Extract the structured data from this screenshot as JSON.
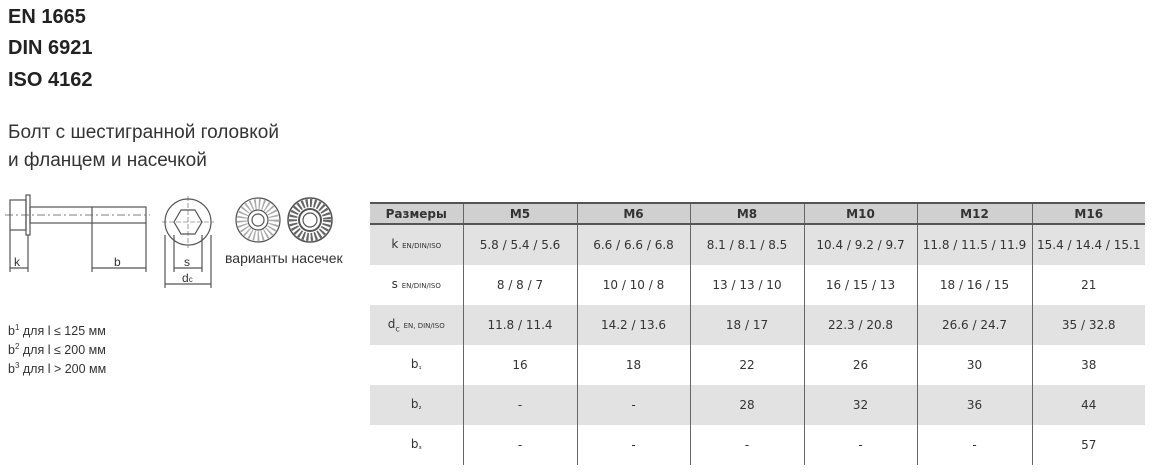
{
  "standards": [
    "EN 1665",
    "DIN 6921",
    "ISO 4162"
  ],
  "title_lines": [
    "Болт с шестигранной головкой",
    "и фланцем и насечкой"
  ],
  "drawing": {
    "k": "k",
    "b": "b",
    "s": "s",
    "dc": "d",
    "dc_sub": "c",
    "variants_label": "варианты насечек"
  },
  "notes": [
    {
      "b": "b",
      "sup": "1",
      "text": " для l ≤ 125 мм"
    },
    {
      "b": "b",
      "sup": "2",
      "text": " для l ≤ 200 мм"
    },
    {
      "b": "b",
      "sup": "3",
      "text": " для l > 200 мм"
    }
  ],
  "table": {
    "headers": [
      "Размеры",
      "M5",
      "M6",
      "M8",
      "M10",
      "M12",
      "M16"
    ],
    "rows": [
      {
        "label": "k",
        "label_sub": "",
        "label_small": "EN/DIN/ISO",
        "values": [
          "5.8 / 5.4 / 5.6",
          "6.6 / 6.6 / 6.8",
          "8.1 / 8.1 / 8.5",
          "10.4 / 9.2 / 9.7",
          "11.8 / 11.5 / 11.9",
          "15.4 / 14.4 / 15.1"
        ]
      },
      {
        "label": "s",
        "label_sub": "",
        "label_small": "EN/DIN/ISO",
        "values": [
          "8 / 8 / 7",
          "10 / 10 / 8",
          "13 / 13 / 10",
          "16 / 15 / 13",
          "18 / 16 / 15",
          "21"
        ]
      },
      {
        "label": "d",
        "label_sub": "c",
        "label_small": "EN, DIN/ISO",
        "values": [
          "11.8 / 11.4",
          "14.2 / 13.6",
          "18 / 17",
          "22.3 / 20.8",
          "26.6 / 24.7",
          "35 / 32.8"
        ]
      },
      {
        "label": "b",
        "label_sub": "¹",
        "label_small": "",
        "values": [
          "16",
          "18",
          "22",
          "26",
          "30",
          "38"
        ]
      },
      {
        "label": "b",
        "label_sub": "²",
        "label_small": "",
        "values": [
          "-",
          "-",
          "28",
          "32",
          "36",
          "44"
        ]
      },
      {
        "label": "b",
        "label_sub": "³",
        "label_small": "",
        "values": [
          "-",
          "-",
          "-",
          "-",
          "-",
          "57"
        ]
      }
    ]
  }
}
